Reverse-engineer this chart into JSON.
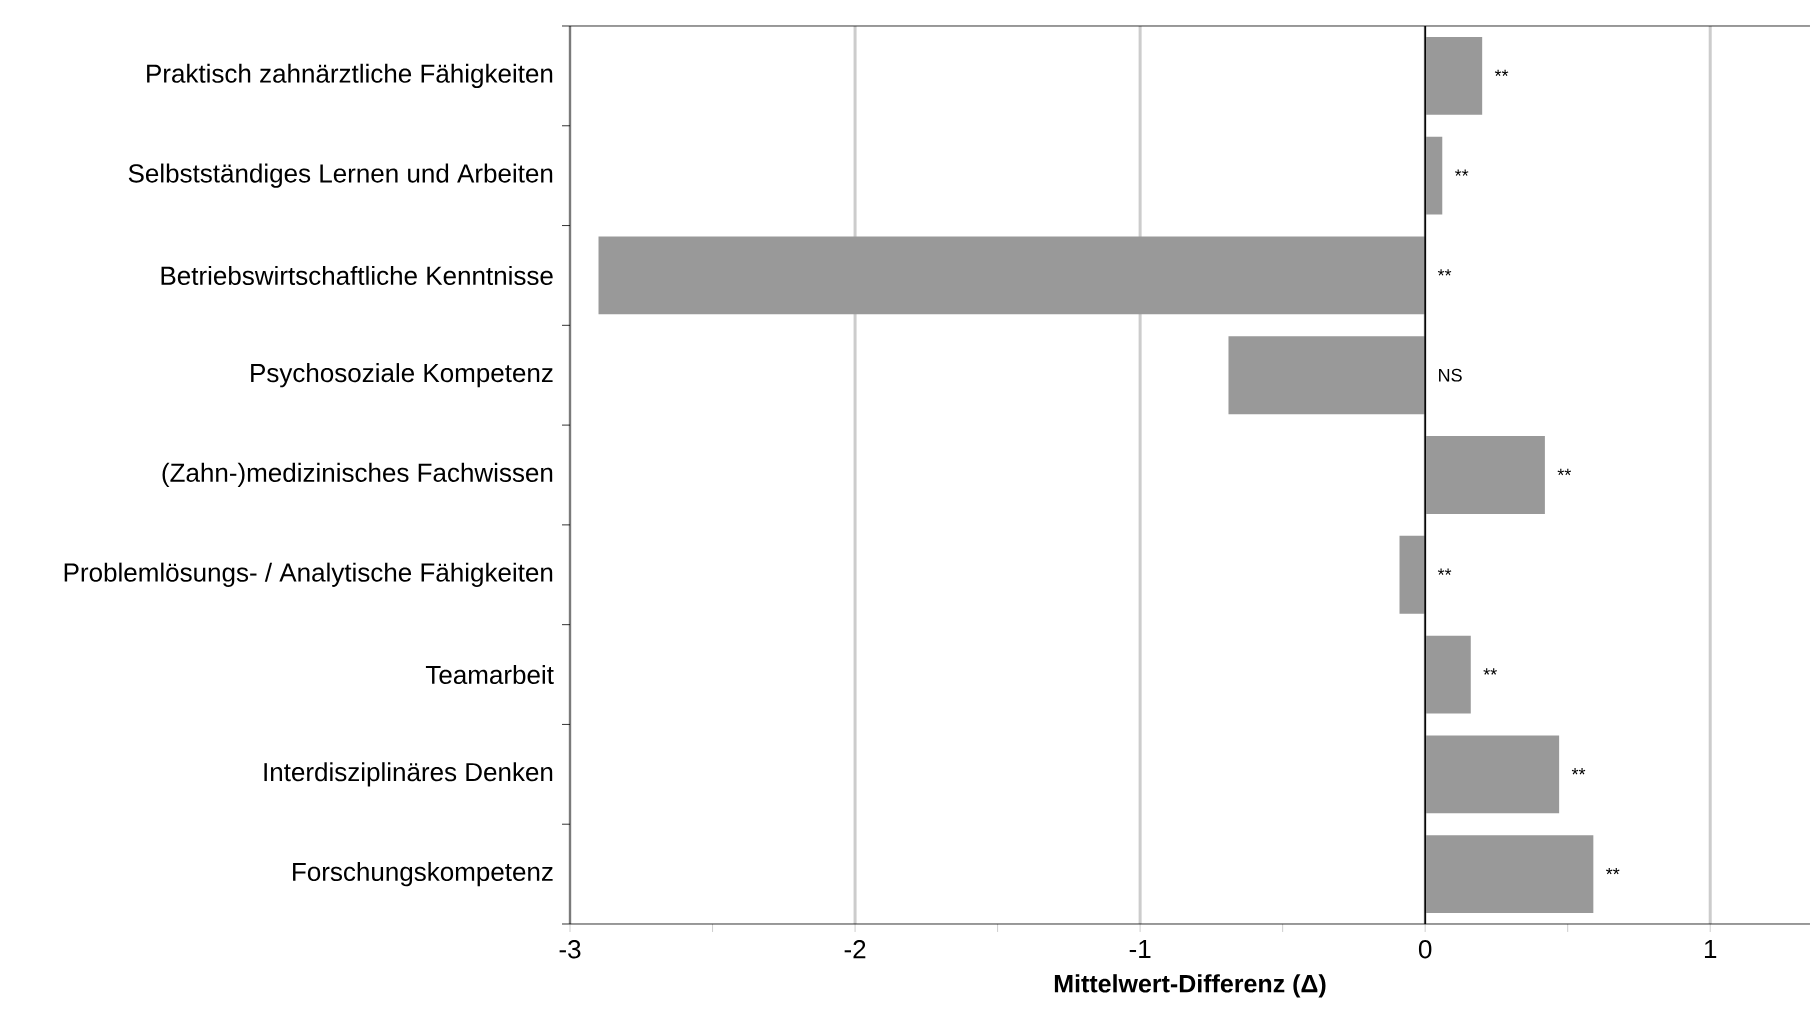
{
  "chart_data": {
    "type": "bar",
    "orientation": "horizontal",
    "xlabel": "Mittelwert-Differenz (Δ)",
    "categories": [
      "Praktisch zahnärztliche Fähigkeiten",
      "Selbstständiges Lernen und Arbeiten",
      "Betriebswirtschaftliche Kenntnisse",
      "Psychosoziale Kompetenz",
      "(Zahn-)medizinisches Fachwissen",
      "Problemlösungs- / Analytische Fähigkeiten",
      "Teamarbeit",
      "Interdisziplinäres Denken",
      "Forschungskompetenz"
    ],
    "values": [
      0.2,
      0.06,
      -2.9,
      -0.69,
      0.42,
      -0.09,
      0.16,
      0.47,
      0.59
    ],
    "value_labels": [
      "**",
      "**",
      "**",
      "NS",
      "**",
      "**",
      "**",
      "**",
      "**"
    ],
    "color": "#999999",
    "xlim": [
      -3,
      1.35
    ],
    "xticks": [
      -3,
      {
        "value": -2.5,
        "label": null
      },
      -2,
      {
        "value": -1.5,
        "label": null
      },
      -1,
      {
        "value": -0.5,
        "label": null
      },
      0,
      {
        "value": 0.5,
        "label": null
      },
      1
    ],
    "grid": "x"
  }
}
